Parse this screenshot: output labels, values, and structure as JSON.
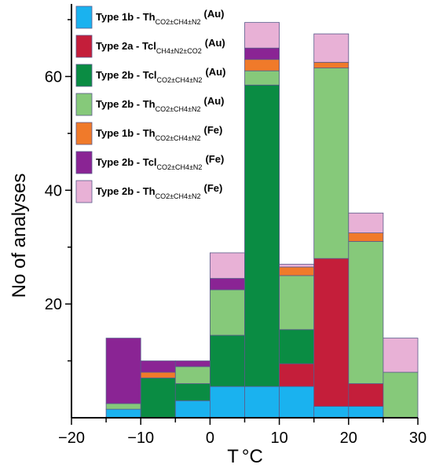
{
  "chart_data": {
    "type": "bar",
    "stacked": true,
    "xlabel_main": "T",
    "xlabel_unit": "°C",
    "ylabel": "No of analyses",
    "xlim": [
      -20,
      30
    ],
    "ylim": [
      0,
      70
    ],
    "x_ticks": [
      -20,
      -10,
      0,
      10,
      20,
      30
    ],
    "x_minor_ticks": [
      -15,
      -5,
      5,
      15,
      25
    ],
    "y_ticks": [
      20,
      40,
      60
    ],
    "bins": [
      {
        "from": -15,
        "to": -10
      },
      {
        "from": -10,
        "to": -5
      },
      {
        "from": -5,
        "to": 0
      },
      {
        "from": 0,
        "to": 5
      },
      {
        "from": 5,
        "to": 10
      },
      {
        "from": 10,
        "to": 15
      },
      {
        "from": 15,
        "to": 20
      },
      {
        "from": 20,
        "to": 25
      },
      {
        "from": 25,
        "to": 30
      }
    ],
    "series": [
      {
        "label_main": "Type 1b - Th",
        "label_sub": "CO2±CH4±N2",
        "label_tag": "(Au)",
        "color": "#1ab2ef",
        "values": [
          1.5,
          0,
          3,
          5.5,
          5.5,
          5.5,
          2,
          2,
          0
        ]
      },
      {
        "label_main": "Type 2a - Tcl",
        "label_sub": "CH4±N2±CO2",
        "label_tag": "(Au)",
        "color": "#c41e3a",
        "values": [
          0,
          0,
          0,
          0,
          0,
          4,
          26,
          4,
          0
        ]
      },
      {
        "label_main": "Type 2b - Tcl",
        "label_sub": "CO2±CH4±N2",
        "label_tag": "(Au)",
        "color": "#0a8c43",
        "values": [
          0,
          7,
          3,
          9,
          53,
          6,
          0,
          0,
          0
        ]
      },
      {
        "label_main": "Type 2b - Th",
        "label_sub": "CO2±CH4±N2",
        "label_tag": "(Au)",
        "color": "#86c97a",
        "values": [
          1,
          0,
          3,
          8,
          2.5,
          9.5,
          33.5,
          25,
          8
        ]
      },
      {
        "label_main": "Type 1b - Th",
        "label_sub": "CO2±CH4±N2",
        "label_tag": "(Fe)",
        "color": "#f07a2a",
        "values": [
          0,
          1,
          0,
          0,
          2,
          1.5,
          1,
          1.5,
          0
        ]
      },
      {
        "label_main": "Type 2b - Tcl",
        "label_sub": "CO2±CH4±N2",
        "label_tag": "(Fe)",
        "color": "#8a2494",
        "values": [
          11.5,
          2,
          1,
          2,
          2,
          0,
          0,
          0,
          0
        ]
      },
      {
        "label_main": "Type 2b - Th",
        "label_sub": "CO2±CH4±N2",
        "label_tag": "(Fe)",
        "color": "#e8b1d6",
        "values": [
          0,
          0,
          0,
          4.5,
          4.5,
          0.5,
          5,
          3.5,
          6
        ]
      }
    ]
  }
}
